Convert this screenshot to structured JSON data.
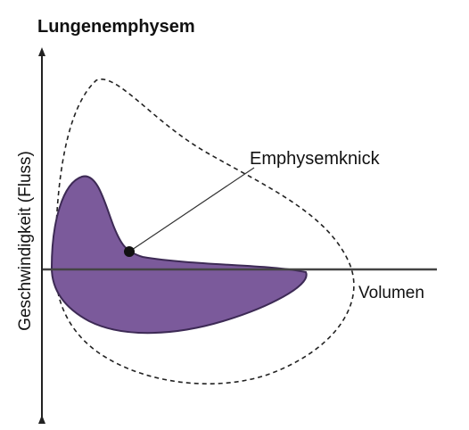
{
  "title": "Lungenemphysem",
  "y_axis_label": "Geschwindigkeit (Fluss)",
  "x_axis_label": "Volumen",
  "annotation": "Emphysemknick"
}
